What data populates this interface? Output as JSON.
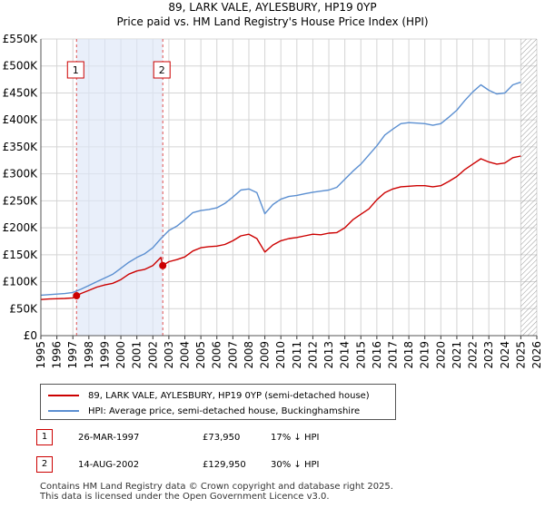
{
  "title": {
    "line1": "89, LARK VALE, AYLESBURY, HP19 0YP",
    "line2": "Price paid vs. HM Land Registry's House Price Index (HPI)"
  },
  "chart_data": {
    "type": "line",
    "xlim": [
      1995,
      2026
    ],
    "ylim": [
      0,
      550000
    ],
    "y_ticks": [
      {
        "value": 0,
        "label": "£0"
      },
      {
        "value": 50000,
        "label": "£50K"
      },
      {
        "value": 100000,
        "label": "£100K"
      },
      {
        "value": 150000,
        "label": "£150K"
      },
      {
        "value": 200000,
        "label": "£200K"
      },
      {
        "value": 250000,
        "label": "£250K"
      },
      {
        "value": 300000,
        "label": "£300K"
      },
      {
        "value": 350000,
        "label": "£350K"
      },
      {
        "value": 400000,
        "label": "£400K"
      },
      {
        "value": 450000,
        "label": "£450K"
      },
      {
        "value": 500000,
        "label": "£500K"
      },
      {
        "value": 550000,
        "label": "£550K"
      }
    ],
    "x_ticks": [
      "1995",
      "1996",
      "1997",
      "1998",
      "1999",
      "2000",
      "2001",
      "2002",
      "2003",
      "2004",
      "2005",
      "2006",
      "2007",
      "2008",
      "2009",
      "2010",
      "2011",
      "2012",
      "2013",
      "2014",
      "2015",
      "2016",
      "2017",
      "2018",
      "2019",
      "2020",
      "2021",
      "2022",
      "2023",
      "2024",
      "2025",
      "2026"
    ],
    "shaded_period": [
      1997.23,
      2002.62
    ],
    "projection_start": 2025.0,
    "series": [
      {
        "name": "89, LARK VALE, AYLESBURY, HP19 0YP (semi-detached house)",
        "color": "#cc0000",
        "points": [
          [
            1995.0,
            67000
          ],
          [
            1995.5,
            68000
          ],
          [
            1996.0,
            68500
          ],
          [
            1996.5,
            69000
          ],
          [
            1997.0,
            70000
          ],
          [
            1997.23,
            73950
          ],
          [
            1997.5,
            78000
          ],
          [
            1998.0,
            84000
          ],
          [
            1998.5,
            90000
          ],
          [
            1999.0,
            94000
          ],
          [
            1999.5,
            97000
          ],
          [
            2000.0,
            104000
          ],
          [
            2000.5,
            114000
          ],
          [
            2001.0,
            120000
          ],
          [
            2001.5,
            123000
          ],
          [
            2002.0,
            130000
          ],
          [
            2002.5,
            145000
          ],
          [
            2002.62,
            129950
          ],
          [
            2003.0,
            137000
          ],
          [
            2003.5,
            141000
          ],
          [
            2004.0,
            146000
          ],
          [
            2004.5,
            157000
          ],
          [
            2005.0,
            163000
          ],
          [
            2005.5,
            165000
          ],
          [
            2006.0,
            166000
          ],
          [
            2006.5,
            169000
          ],
          [
            2007.0,
            176000
          ],
          [
            2007.5,
            185000
          ],
          [
            2008.0,
            188000
          ],
          [
            2008.5,
            180000
          ],
          [
            2009.0,
            155000
          ],
          [
            2009.5,
            168000
          ],
          [
            2010.0,
            176000
          ],
          [
            2010.5,
            180000
          ],
          [
            2011.0,
            182000
          ],
          [
            2011.5,
            185000
          ],
          [
            2012.0,
            188000
          ],
          [
            2012.5,
            187000
          ],
          [
            2013.0,
            190000
          ],
          [
            2013.5,
            191000
          ],
          [
            2014.0,
            200000
          ],
          [
            2014.5,
            215000
          ],
          [
            2015.0,
            225000
          ],
          [
            2015.5,
            235000
          ],
          [
            2016.0,
            252000
          ],
          [
            2016.5,
            265000
          ],
          [
            2017.0,
            272000
          ],
          [
            2017.5,
            276000
          ],
          [
            2018.0,
            277000
          ],
          [
            2018.5,
            278000
          ],
          [
            2019.0,
            278000
          ],
          [
            2019.5,
            276000
          ],
          [
            2020.0,
            278000
          ],
          [
            2020.5,
            286000
          ],
          [
            2021.0,
            295000
          ],
          [
            2021.5,
            308000
          ],
          [
            2022.0,
            318000
          ],
          [
            2022.5,
            328000
          ],
          [
            2023.0,
            322000
          ],
          [
            2023.5,
            318000
          ],
          [
            2024.0,
            320000
          ],
          [
            2024.5,
            330000
          ],
          [
            2025.0,
            333000
          ]
        ]
      },
      {
        "name": "HPI: Average price, semi-detached house, Buckinghamshire",
        "color": "#5b8fd1",
        "points": [
          [
            1995.0,
            75000
          ],
          [
            1995.5,
            76000
          ],
          [
            1996.0,
            77000
          ],
          [
            1996.5,
            78000
          ],
          [
            1997.0,
            80000
          ],
          [
            1997.5,
            86000
          ],
          [
            1998.0,
            93000
          ],
          [
            1998.5,
            100000
          ],
          [
            1999.0,
            107000
          ],
          [
            1999.5,
            114000
          ],
          [
            2000.0,
            125000
          ],
          [
            2000.5,
            136000
          ],
          [
            2001.0,
            145000
          ],
          [
            2001.5,
            152000
          ],
          [
            2002.0,
            163000
          ],
          [
            2002.5,
            180000
          ],
          [
            2003.0,
            195000
          ],
          [
            2003.5,
            203000
          ],
          [
            2004.0,
            215000
          ],
          [
            2004.5,
            228000
          ],
          [
            2005.0,
            232000
          ],
          [
            2005.5,
            234000
          ],
          [
            2006.0,
            237000
          ],
          [
            2006.5,
            245000
          ],
          [
            2007.0,
            257000
          ],
          [
            2007.5,
            270000
          ],
          [
            2008.0,
            272000
          ],
          [
            2008.5,
            265000
          ],
          [
            2009.0,
            226000
          ],
          [
            2009.5,
            243000
          ],
          [
            2010.0,
            253000
          ],
          [
            2010.5,
            258000
          ],
          [
            2011.0,
            260000
          ],
          [
            2011.5,
            263000
          ],
          [
            2012.0,
            266000
          ],
          [
            2012.5,
            268000
          ],
          [
            2013.0,
            270000
          ],
          [
            2013.5,
            275000
          ],
          [
            2014.0,
            290000
          ],
          [
            2014.5,
            305000
          ],
          [
            2015.0,
            318000
          ],
          [
            2015.5,
            335000
          ],
          [
            2016.0,
            352000
          ],
          [
            2016.5,
            372000
          ],
          [
            2017.0,
            383000
          ],
          [
            2017.5,
            393000
          ],
          [
            2018.0,
            395000
          ],
          [
            2018.5,
            394000
          ],
          [
            2019.0,
            393000
          ],
          [
            2019.5,
            390000
          ],
          [
            2020.0,
            393000
          ],
          [
            2020.5,
            405000
          ],
          [
            2021.0,
            418000
          ],
          [
            2021.5,
            436000
          ],
          [
            2022.0,
            452000
          ],
          [
            2022.5,
            465000
          ],
          [
            2023.0,
            455000
          ],
          [
            2023.5,
            448000
          ],
          [
            2024.0,
            450000
          ],
          [
            2024.5,
            465000
          ],
          [
            2025.0,
            470000
          ]
        ]
      }
    ],
    "sales": [
      {
        "id": "1",
        "x": 1997.23,
        "price": 73950
      },
      {
        "id": "2",
        "x": 2002.62,
        "price": 129950
      }
    ]
  },
  "legend": {
    "property_label": "89, LARK VALE, AYLESBURY, HP19 0YP (semi-detached house)",
    "hpi_label": "HPI: Average price, semi-detached house, Buckinghamshire",
    "property_color": "#cc0000",
    "hpi_color": "#5b8fd1"
  },
  "sales_table": [
    {
      "num": "1",
      "date": "26-MAR-1997",
      "price": "£73,950",
      "hpi": "17% ↓ HPI"
    },
    {
      "num": "2",
      "date": "14-AUG-2002",
      "price": "£129,950",
      "hpi": "30% ↓ HPI"
    }
  ],
  "footer": {
    "line1": "Contains HM Land Registry data © Crown copyright and database right 2025.",
    "line2": "This data is licensed under the Open Government Licence v3.0."
  }
}
